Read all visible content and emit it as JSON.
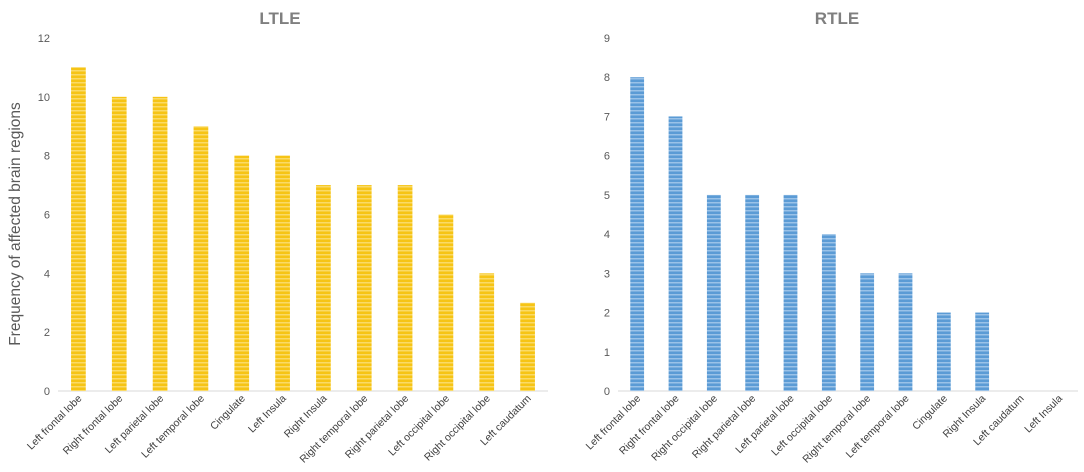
{
  "figure": {
    "ylabel": "Frequency of affected brain regions"
  },
  "chart_data": [
    {
      "type": "bar",
      "title": "LTLE",
      "xlabel": "",
      "ylabel": "Frequency of affected brain regions",
      "ylim": [
        0,
        12
      ],
      "yticks": [
        0,
        2,
        4,
        6,
        8,
        10,
        12
      ],
      "grid": false,
      "color": "#F5C518",
      "categories": [
        "Left frontal lobe",
        "Right frontal lobe",
        "Left parietal lobe",
        "Left temporal lobe",
        "Cingulate",
        "Left Insula",
        "Right Insula",
        "Right temporal lobe",
        "Right parietal lobe",
        "Left occipital lobe",
        "Right occipital lobe",
        "Left caudatum"
      ],
      "values": [
        11,
        10,
        10,
        9,
        8,
        8,
        7,
        7,
        7,
        6,
        4,
        3
      ]
    },
    {
      "type": "bar",
      "title": "RTLE",
      "xlabel": "",
      "ylabel": "",
      "ylim": [
        0,
        9
      ],
      "yticks": [
        0,
        1,
        2,
        3,
        4,
        5,
        6,
        7,
        8,
        9
      ],
      "grid": false,
      "color": "#5B9BD5",
      "categories": [
        "Left frontal lobe",
        "Right frontal lobe",
        "Right occipital lobe",
        "Right parietal lobe",
        "Left parietal lobe",
        "Left occipital lobe",
        "Right temporal lobe",
        "Left temporal lobe",
        "Cingulate",
        "Right Insula",
        "Left caudatum",
        "Left Insula"
      ],
      "values": [
        8,
        7,
        5,
        5,
        5,
        4,
        3,
        3,
        2,
        2,
        0,
        0
      ]
    }
  ]
}
